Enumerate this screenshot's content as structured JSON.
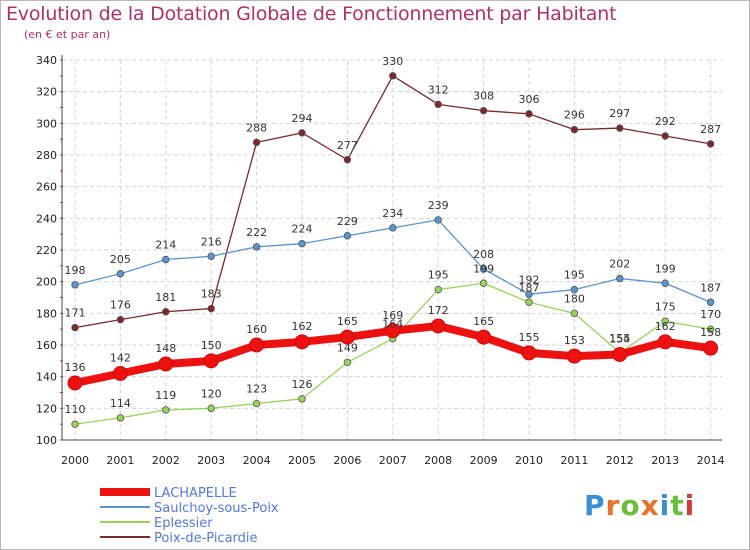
{
  "header": {
    "title": "Evolution de la Dotation Globale de Fonctionnement par Habitant",
    "subtitle": "(en € et par an)"
  },
  "brand": {
    "logo_text": "Proxiti",
    "letter_colors": [
      "#3a8fd0",
      "#e8722a",
      "#6abf3a",
      "#e8722a",
      "#3a8fd0",
      "#6abf3a",
      "#d43c3c"
    ]
  },
  "chart_data": {
    "type": "line",
    "title": "Evolution de la Dotation Globale de Fonctionnement par Habitant",
    "subtitle": "(en € et par an)",
    "x": [
      "2000",
      "2001",
      "2002",
      "2003",
      "2004",
      "2005",
      "2006",
      "2007",
      "2008",
      "2009",
      "2010",
      "2011",
      "2012",
      "2013",
      "2014"
    ],
    "ylim": [
      100,
      340
    ],
    "yticks": [
      100,
      120,
      140,
      160,
      180,
      200,
      220,
      240,
      260,
      280,
      300,
      320,
      340
    ],
    "grid": true,
    "legend_position": "bottom-left",
    "series": [
      {
        "name": "LACHAPELLE",
        "color": "#ee1111",
        "values": [
          136,
          142,
          148,
          150,
          160,
          162,
          165,
          169,
          172,
          165,
          155,
          153,
          154,
          162,
          158
        ]
      },
      {
        "name": "Saulchoy-sous-Poix",
        "color": "#5b95cf",
        "values": [
          198,
          205,
          214,
          216,
          222,
          224,
          229,
          234,
          239,
          208,
          192,
          195,
          202,
          199,
          187
        ]
      },
      {
        "name": "Eplessier",
        "color": "#99d45a",
        "values": [
          110,
          114,
          119,
          120,
          123,
          126,
          149,
          164,
          195,
          199,
          187,
          180,
          155,
          175,
          170
        ]
      },
      {
        "name": "Poix-de-Picardie",
        "color": "#7a2a2a",
        "values": [
          171,
          176,
          181,
          183,
          288,
          294,
          277,
          330,
          312,
          308,
          306,
          296,
          297,
          292,
          287
        ]
      }
    ]
  }
}
